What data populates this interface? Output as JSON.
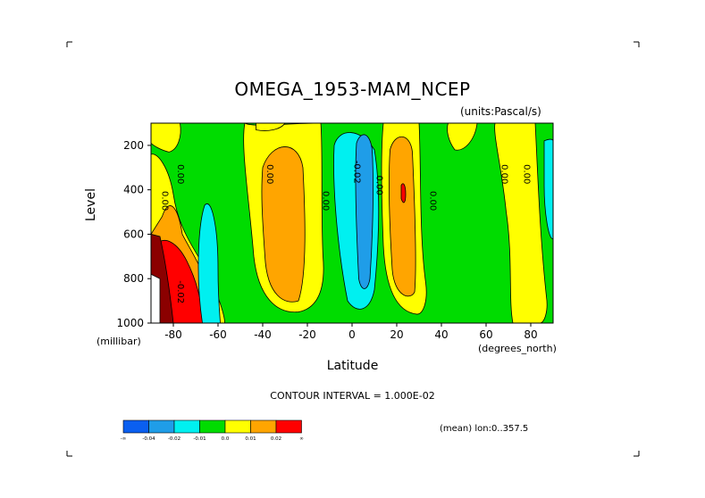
{
  "title": "OMEGA_1953-MAM_NCEP",
  "units": "(units:Pascal/s)",
  "contour_interval": "CONTOUR INTERVAL = 1.000E-02",
  "mean_note": "(mean) lon:0..357.5",
  "colors": {
    "neg_inf": "#0a5ff0",
    "lt_m004": "#1f9de8",
    "lt_m002": "#00f0f0",
    "lt_m001": "#00dc00",
    "lt_0": "#00dc00",
    "lt_001": "#ffff00",
    "lt_002": "#ffa500",
    "gt_002": "#ff0000",
    "dark": "#8b0000"
  },
  "chart_data": {
    "type": "heatmap",
    "title": "OMEGA_1953-MAM_NCEP",
    "xlabel": "Latitude",
    "xunit": "(degrees_north)",
    "ylabel": "Level",
    "yunit": "(millibar)",
    "xlim": [
      -90,
      90
    ],
    "ylim": [
      1000,
      100
    ],
    "x_ticks": [
      -80,
      -60,
      -40,
      -20,
      0,
      20,
      40,
      60,
      80
    ],
    "y_ticks": [
      200,
      400,
      600,
      800,
      1000
    ],
    "colorbar": {
      "bounds": [
        "-∞",
        "-0.04",
        "-0.02",
        "-0.01",
        "0.0",
        "0.01",
        "0.02",
        "∞"
      ],
      "bins": 7
    },
    "contour_labels": [
      {
        "text": "0.00",
        "x": -85,
        "y": 450
      },
      {
        "text": "0.00",
        "x": -78,
        "y": 330
      },
      {
        "text": "-0.02",
        "x": -78,
        "y": 860
      },
      {
        "text": "0.00",
        "x": -38,
        "y": 330
      },
      {
        "text": "0.00",
        "x": -13,
        "y": 450
      },
      {
        "text": "-0.02",
        "x": 1,
        "y": 320
      },
      {
        "text": "0.00",
        "x": 11,
        "y": 380
      },
      {
        "text": "0.00",
        "x": 35,
        "y": 450
      },
      {
        "text": "0.00",
        "x": 67,
        "y": 330
      },
      {
        "text": "0.00",
        "x": 77,
        "y": 330
      }
    ]
  }
}
